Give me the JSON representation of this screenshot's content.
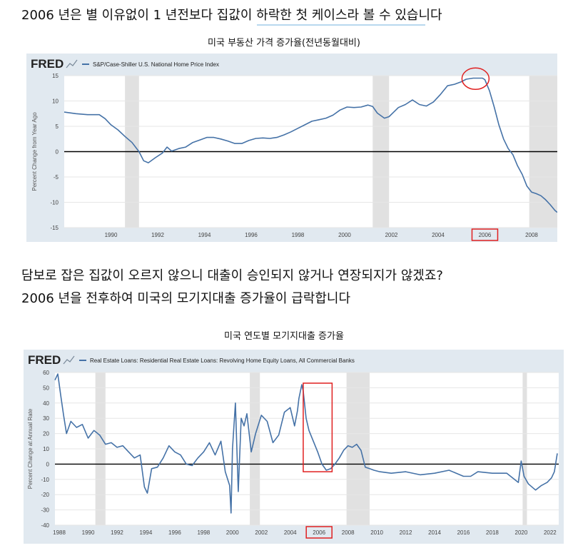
{
  "text": {
    "line1": "2006 년은 별 이유없이 1 년전보다 집값이 하락한 첫 케이스라 볼 수 있습니다",
    "caption1": "미국 부동산 가격 증가율(전년동월대비)",
    "line2": "담보로 잡은 집값이 오르지 않으니 대출이 승인되지 않거나 연장되지가 않겠죠?",
    "line3": "2006 년을 전후하여 미국의 모기지대출 증가율이 급락합니다",
    "caption2": "미국 연도별 모기지대출 증가율"
  },
  "colors": {
    "header_bg": "#e1e9f0",
    "plot_bg": "#ffffff",
    "series": "#4572a7",
    "recession": "#e1e1e1",
    "highlight": "#e02020",
    "grid": "#e6e6e6"
  },
  "chart_data": [
    {
      "type": "line",
      "brand": "FRED",
      "legend": "S&P/Case-Shiller U.S. National Home Price Index",
      "ylabel": "Percent Change from Year Ago",
      "ylim": [
        -15,
        15
      ],
      "yticks": [
        15,
        10,
        5,
        0,
        -5,
        -10,
        -15
      ],
      "xlim": [
        1988.0,
        2009.1
      ],
      "xticks": [
        1990,
        1992,
        1994,
        1996,
        1998,
        2000,
        2002,
        2004,
        2006,
        2008
      ],
      "recessions": [
        [
          1990.6,
          1991.2
        ],
        [
          2001.2,
          2001.9
        ],
        [
          2007.9,
          2009.1
        ]
      ],
      "highlight_tick": 2006,
      "highlight_circle_center": [
        2005.6,
        14.4
      ],
      "series": [
        {
          "x": [
            1988.0,
            1988.5,
            1989.0,
            1989.5,
            1989.75,
            1990.0,
            1990.3,
            1990.6,
            1990.9,
            1991.2,
            1991.4,
            1991.6,
            1991.9,
            1992.2,
            1992.4,
            1992.6,
            1992.9,
            1993.2,
            1993.5,
            1993.8,
            1994.1,
            1994.4,
            1994.7,
            1995.0,
            1995.3,
            1995.6,
            1995.9,
            1996.2,
            1996.5,
            1996.8,
            1997.1,
            1997.4,
            1997.7,
            1998.0,
            1998.3,
            1998.6,
            1998.9,
            1999.2,
            1999.5,
            1999.8,
            2000.1,
            2000.4,
            2000.7,
            2001.0,
            2001.2,
            2001.4,
            2001.7,
            2001.9,
            2002.1,
            2002.3,
            2002.6,
            2002.9,
            2003.2,
            2003.5,
            2003.8,
            2004.1,
            2004.4,
            2004.7,
            2005.0,
            2005.2,
            2005.5,
            2005.8,
            2005.9,
            2006.0,
            2006.2,
            2006.4,
            2006.6,
            2006.8,
            2007.0,
            2007.2,
            2007.4,
            2007.6,
            2007.8,
            2008.0,
            2008.2,
            2008.4,
            2008.6,
            2008.8,
            2009.0,
            2009.1
          ],
          "y": [
            7.8,
            7.5,
            7.3,
            7.3,
            6.5,
            5.3,
            4.3,
            3.0,
            1.8,
            0.0,
            -1.8,
            -2.2,
            -1.2,
            -0.3,
            0.9,
            0.1,
            0.6,
            0.9,
            1.8,
            2.3,
            2.8,
            2.8,
            2.5,
            2.1,
            1.6,
            1.6,
            2.2,
            2.6,
            2.7,
            2.6,
            2.8,
            3.3,
            3.9,
            4.6,
            5.3,
            6.0,
            6.3,
            6.6,
            7.2,
            8.2,
            8.8,
            8.7,
            8.8,
            9.2,
            8.9,
            7.6,
            6.6,
            6.9,
            7.8,
            8.7,
            9.3,
            10.2,
            9.3,
            9.0,
            9.8,
            11.3,
            13.0,
            13.3,
            13.8,
            14.3,
            14.5,
            14.5,
            14.5,
            14.2,
            12.0,
            8.8,
            5.3,
            2.5,
            0.6,
            -0.6,
            -2.8,
            -4.5,
            -6.8,
            -8.0,
            -8.3,
            -8.7,
            -9.5,
            -10.5,
            -11.6,
            -12.0
          ]
        }
      ]
    },
    {
      "type": "line",
      "brand": "FRED",
      "legend": "Real Estate Loans: Residential Real Estate Loans: Revolving Home Equity Loans, All Commercial Banks",
      "ylabel": "Percent Change at Annual Rate",
      "ylim": [
        -40,
        60
      ],
      "yticks": [
        60,
        50,
        40,
        30,
        20,
        10,
        0,
        -10,
        -20,
        -30,
        -40
      ],
      "xlim": [
        1987.7,
        2022.6
      ],
      "xticks": [
        1988,
        1990,
        1992,
        1994,
        1996,
        1998,
        2000,
        2002,
        2004,
        2006,
        2008,
        2010,
        2012,
        2014,
        2016,
        2018,
        2020,
        2022
      ],
      "recessions": [
        [
          1990.5,
          1991.2
        ],
        [
          2001.2,
          2001.9
        ],
        [
          2007.9,
          2009.5
        ],
        [
          2020.1,
          2020.4
        ]
      ],
      "highlight_tick": 2006,
      "highlight_box_x": [
        2004.9,
        2006.9
      ],
      "highlight_box_y": [
        -5,
        53
      ],
      "series": [
        {
          "x": [
            1987.7,
            1987.9,
            1988.1,
            1988.3,
            1988.5,
            1988.8,
            1989.2,
            1989.6,
            1990.0,
            1990.4,
            1990.8,
            1991.2,
            1991.6,
            1992.0,
            1992.4,
            1992.8,
            1993.2,
            1993.6,
            1993.9,
            1994.1,
            1994.4,
            1994.8,
            1995.2,
            1995.6,
            1996.0,
            1996.4,
            1996.8,
            1997.2,
            1997.6,
            1998.0,
            1998.4,
            1998.8,
            1999.2,
            1999.5,
            1999.8,
            1999.9,
            2000.0,
            2000.2,
            2000.4,
            2000.6,
            2000.8,
            2001.0,
            2001.3,
            2001.6,
            2002.0,
            2002.4,
            2002.8,
            2003.2,
            2003.6,
            2004.0,
            2004.3,
            2004.5,
            2004.6,
            2004.8,
            2004.9,
            2005.1,
            2005.3,
            2005.6,
            2005.9,
            2006.2,
            2006.5,
            2006.8,
            2007.1,
            2007.4,
            2007.7,
            2008.0,
            2008.3,
            2008.6,
            2008.9,
            2009.2,
            2009.5,
            2009.8,
            2010.2,
            2011.0,
            2012.0,
            2013.0,
            2014.0,
            2015.0,
            2016.0,
            2016.5,
            2017.0,
            2018.0,
            2019.0,
            2019.8,
            2020.0,
            2020.2,
            2020.5,
            2021.0,
            2021.4,
            2021.8,
            2022.1,
            2022.3,
            2022.5
          ],
          "y": [
            55,
            59,
            45,
            32,
            20,
            28,
            24,
            26,
            17,
            22,
            19,
            13,
            14,
            11,
            12,
            8,
            4,
            6,
            -15,
            -19,
            -3,
            -2,
            4,
            12,
            8,
            6,
            0,
            -1,
            4,
            8,
            14,
            6,
            15,
            -5,
            -14,
            -32,
            10,
            40,
            -18,
            30,
            25,
            33,
            8,
            20,
            32,
            28,
            14,
            19,
            34,
            37,
            25,
            35,
            43,
            52,
            48,
            30,
            22,
            15,
            8,
            0,
            -4,
            -3,
            0,
            4,
            9,
            12,
            11,
            13,
            9,
            -2,
            -3,
            -4,
            -5,
            -6,
            -5,
            -7,
            -6,
            -4,
            -8,
            -8,
            -5,
            -6,
            -6,
            -12,
            2,
            -8,
            -13,
            -17,
            -14,
            -12,
            -9,
            -5,
            7
          ]
        }
      ]
    }
  ]
}
